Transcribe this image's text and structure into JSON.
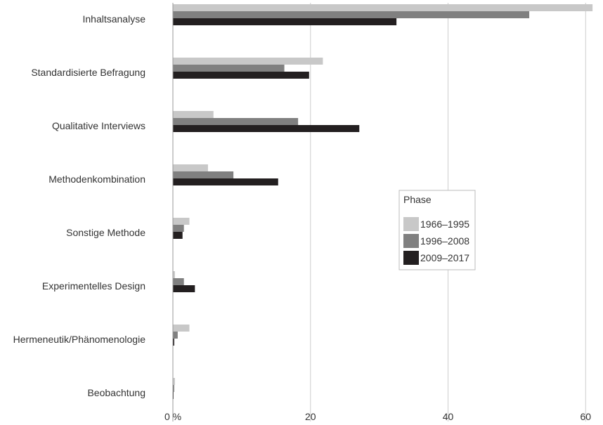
{
  "chart_data": {
    "type": "bar",
    "orientation": "horizontal",
    "categories": [
      "Inhaltsanalyse",
      "Standardisierte Befragung",
      "Qualitative Interviews",
      "Methodenkombination",
      "Sonstige Methode",
      "Experimentelles Design",
      "Hermeneutik/Phänomenologie",
      "Beobachtung"
    ],
    "series": [
      {
        "name": "1966–1995",
        "color": "#c8c8c8",
        "values": [
          61.0,
          21.8,
          5.9,
          5.1,
          2.4,
          0.3,
          2.4,
          0.3
        ]
      },
      {
        "name": "1996–2008",
        "color": "#808080",
        "values": [
          51.8,
          16.2,
          18.2,
          8.8,
          1.6,
          1.6,
          0.7,
          0.2
        ]
      },
      {
        "name": "2009–2017",
        "color": "#231f20",
        "values": [
          32.5,
          19.8,
          27.1,
          15.3,
          1.4,
          3.2,
          0.2,
          0.1
        ]
      }
    ],
    "x_ticks": [
      {
        "value": 0,
        "label": "0 %"
      },
      {
        "value": 20,
        "label": "20"
      },
      {
        "value": 40,
        "label": "40"
      },
      {
        "value": 60,
        "label": "60"
      }
    ],
    "xlim": [
      0,
      61.5
    ],
    "grid": "vertical",
    "legend": {
      "title": "Phase",
      "position": "center-right"
    }
  }
}
